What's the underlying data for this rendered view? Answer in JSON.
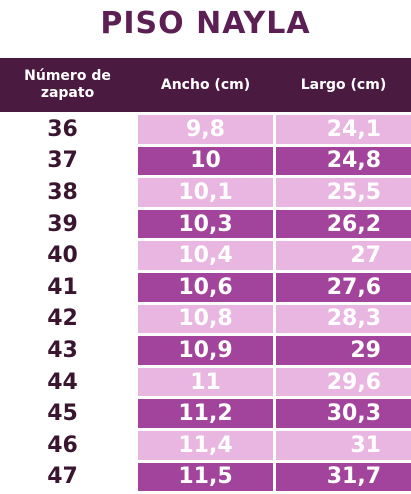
{
  "title": "PISO NAYLA",
  "table": {
    "header": [
      "Número de zapato",
      "Ancho (cm)",
      "Largo (cm)"
    ],
    "rows": [
      [
        "36",
        "9,8",
        "24,1"
      ],
      [
        "37",
        "10",
        "24,8"
      ],
      [
        "38",
        "10,1",
        "25,5"
      ],
      [
        "39",
        "10,3",
        "26,2"
      ],
      [
        "40",
        "10,4",
        "27"
      ],
      [
        "41",
        "10,6",
        "27,6"
      ],
      [
        "42",
        "10,8",
        "28,3"
      ],
      [
        "43",
        "10,9",
        "29"
      ],
      [
        "44",
        "11",
        "29,6"
      ],
      [
        "45",
        "11,2",
        "30,3"
      ],
      [
        "46",
        "11,4",
        "31"
      ],
      [
        "47",
        "11,5",
        "31,7"
      ]
    ]
  }
}
